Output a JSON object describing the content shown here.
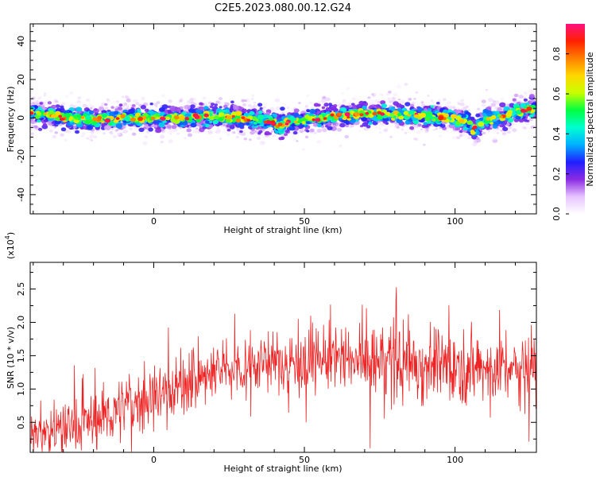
{
  "title": "C2E5.2023.080.00.12.G24",
  "chart_data": [
    {
      "type": "heatmap",
      "xlabel": "Height of straight line (km)",
      "ylabel": "Frequency (Hz)",
      "xlim": [
        -41,
        127
      ],
      "ylim": [
        -50,
        49
      ],
      "xticks": [
        0,
        50,
        100
      ],
      "xtick_labels": [
        "0",
        "50",
        "100"
      ],
      "yticks": [
        -40,
        -20,
        0,
        20,
        40
      ],
      "ytick_labels": [
        "-40",
        "-20",
        "0",
        "20",
        "40"
      ],
      "center_curve": {
        "x": [
          -41,
          -30,
          -20,
          -10,
          0,
          10,
          20,
          30,
          38,
          42,
          46,
          50,
          55,
          60,
          70,
          80,
          90,
          100,
          104,
          106,
          110,
          115,
          120,
          127
        ],
        "y": [
          3,
          0,
          -1,
          0,
          0,
          0,
          1,
          0,
          -2,
          -4,
          -2,
          -1,
          0,
          1,
          2,
          2,
          1,
          0,
          -2,
          -6,
          -1,
          0,
          3,
          5
        ]
      },
      "colorbar": {
        "label": "Normalized spectral amplitude",
        "range": [
          0,
          0.95
        ],
        "ticks": [
          0.0,
          0.2,
          0.4,
          0.6,
          0.8
        ],
        "tick_labels": [
          "0.0",
          "0.2",
          "0.4",
          "0.6",
          "0.8"
        ],
        "colormap": [
          "#ffffff",
          "#e6c4ff",
          "#8a2be2",
          "#2020ff",
          "#00b0ff",
          "#00ffd0",
          "#00ff40",
          "#c8ff00",
          "#ffd700",
          "#ff8000",
          "#ff2000",
          "#ff1080"
        ]
      }
    },
    {
      "type": "line",
      "xlabel": "Height of straight line (km)",
      "ylabel": "SNR (10 * v/v)",
      "multiplier": "(x10",
      "multiplier_exp": "4",
      "multiplier_close": ")",
      "xlim": [
        -41,
        127
      ],
      "ylim": [
        0.05,
        2.9
      ],
      "xticks": [
        0,
        50,
        100
      ],
      "xtick_labels": [
        "0",
        "50",
        "100"
      ],
      "yticks": [
        0.5,
        1.0,
        1.5,
        2.0,
        2.5
      ],
      "ytick_labels": [
        "0.5",
        "1.0",
        "1.5",
        "2.0",
        "2.5"
      ],
      "color": "#ee2222",
      "trend": {
        "x": [
          -41,
          -35,
          -25,
          -15,
          -5,
          5,
          15,
          25,
          35,
          45,
          55,
          65,
          75,
          85,
          95,
          105,
          115,
          127
        ],
        "mean": [
          0.35,
          0.38,
          0.45,
          0.62,
          0.82,
          0.98,
          1.15,
          1.32,
          1.38,
          1.42,
          1.45,
          1.43,
          1.42,
          1.4,
          1.38,
          1.33,
          1.3,
          1.32
        ],
        "spread": [
          0.18,
          0.22,
          0.28,
          0.3,
          0.3,
          0.3,
          0.3,
          0.28,
          0.3,
          0.3,
          0.34,
          0.38,
          0.4,
          0.4,
          0.36,
          0.34,
          0.34,
          0.36
        ]
      }
    }
  ]
}
